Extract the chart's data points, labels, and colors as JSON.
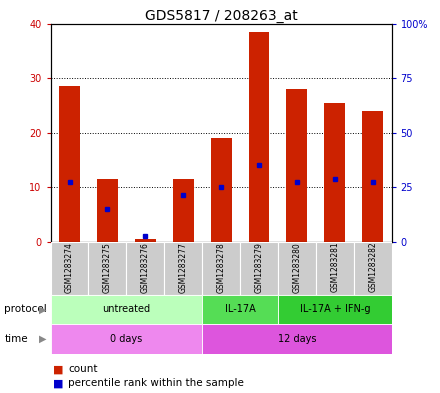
{
  "title": "GDS5817 / 208263_at",
  "samples": [
    "GSM1283274",
    "GSM1283275",
    "GSM1283276",
    "GSM1283277",
    "GSM1283278",
    "GSM1283279",
    "GSM1283280",
    "GSM1283281",
    "GSM1283282"
  ],
  "counts": [
    28.5,
    11.5,
    0.5,
    11.5,
    19.0,
    38.5,
    28.0,
    25.5,
    24.0
  ],
  "percentiles": [
    11.0,
    6.0,
    1.0,
    8.5,
    10.0,
    14.0,
    11.0,
    11.5,
    11.0
  ],
  "left_ylim": [
    0,
    40
  ],
  "right_ylim": [
    0,
    100
  ],
  "left_yticks": [
    0,
    10,
    20,
    30,
    40
  ],
  "right_yticks": [
    0,
    25,
    50,
    75,
    100
  ],
  "right_yticklabels": [
    "0",
    "25",
    "50",
    "75",
    "100%"
  ],
  "bar_color": "#cc2200",
  "dot_color": "#0000cc",
  "protocol_groups": [
    {
      "label": "untreated",
      "start": 0,
      "end": 4,
      "color": "#bbffbb"
    },
    {
      "label": "IL-17A",
      "start": 4,
      "end": 6,
      "color": "#55dd55"
    },
    {
      "label": "IL-17A + IFN-g",
      "start": 6,
      "end": 9,
      "color": "#33cc33"
    }
  ],
  "time_groups": [
    {
      "label": "0 days",
      "start": 0,
      "end": 4,
      "color": "#ee88ee"
    },
    {
      "label": "12 days",
      "start": 4,
      "end": 9,
      "color": "#dd55dd"
    }
  ],
  "protocol_label": "protocol",
  "time_label": "time",
  "legend_count_label": "count",
  "legend_pct_label": "percentile rank within the sample",
  "sample_bg_color": "#cccccc",
  "title_fontsize": 10,
  "tick_fontsize": 7,
  "annotation_fontsize": 7.5
}
